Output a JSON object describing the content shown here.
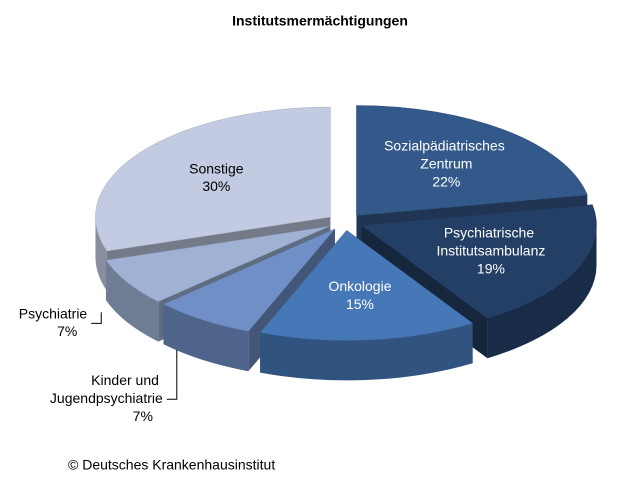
{
  "chart_data": {
    "type": "pie3d",
    "title": "Institutsmermächtigungen",
    "categories": [
      "Sozialpädiatrisches Zentrum",
      "Psychiatrische Institutsambulanz",
      "Onkologie",
      "Kinder und Jugendpsychiatrie",
      "Psychiatrie",
      "Sonstige"
    ],
    "values": [
      22,
      19,
      15,
      7,
      7,
      30
    ],
    "value_labels": [
      "22%",
      "19%",
      "15%",
      "7%",
      "7%",
      "30%"
    ],
    "colors": [
      "#33598a",
      "#243f66",
      "#4677b6",
      "#6f8fc6",
      "#9fb2d4",
      "#c2cbe2"
    ],
    "source": "© Deutsches Krankenhausinstitut"
  }
}
